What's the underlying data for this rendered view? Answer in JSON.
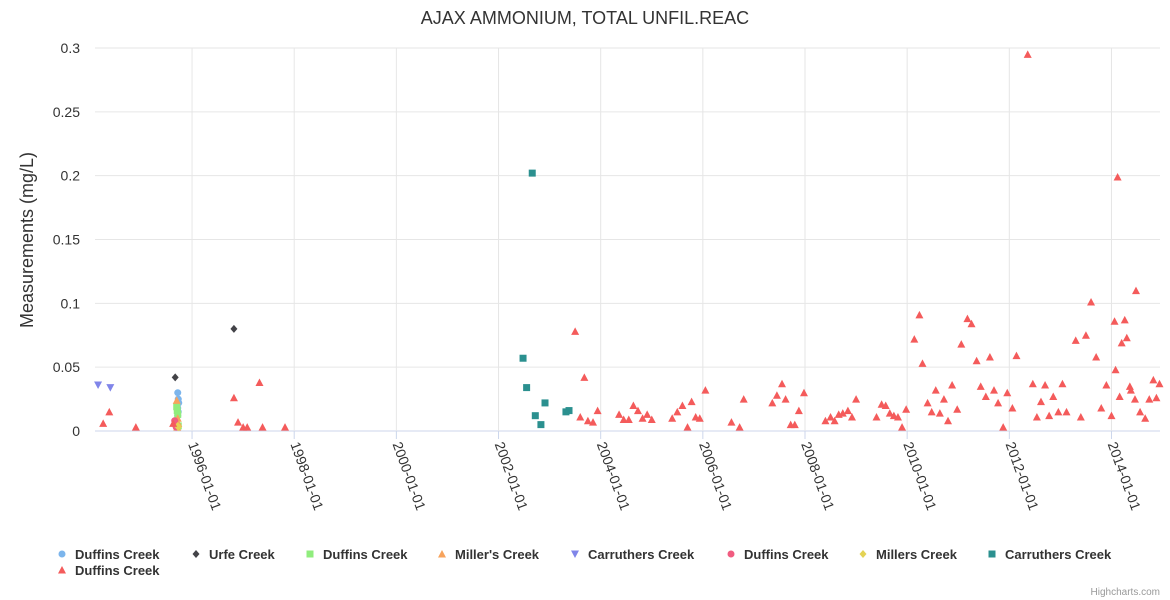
{
  "chart_data": {
    "type": "scatter",
    "title": "AJAX AMMONIUM, TOTAL UNFIL.REAC",
    "xlabel": "",
    "ylabel": "Measurements (mg/L)",
    "ylim": [
      0,
      0.3
    ],
    "yticks": [
      0,
      0.05,
      0.1,
      0.15,
      0.2,
      0.25,
      0.3
    ],
    "ytick_labels": [
      "0",
      "0.05",
      "0.1",
      "0.15",
      "0.2",
      "0.25",
      "0.3"
    ],
    "xlim": [
      1994.1,
      2014.95
    ],
    "xticks": [
      1996,
      1998,
      2000,
      2002,
      2004,
      2006,
      2008,
      2010,
      2012,
      2014
    ],
    "xtick_labels": [
      "1996-01-01",
      "1998-01-01",
      "2000-01-01",
      "2002-01-01",
      "2004-01-01",
      "2006-01-01",
      "2008-01-01",
      "2010-01-01",
      "2012-01-01",
      "2014-01-01"
    ],
    "grid": true,
    "legend_position": "bottom",
    "credits": "Highcharts.com",
    "series": [
      {
        "name": "Duffins Creek",
        "color": "#7cb5ec",
        "marker": "circle",
        "points": [
          [
            1995.72,
            0.03
          ],
          [
            1995.73,
            0.025
          ],
          [
            1995.74,
            0.022
          ],
          [
            1995.72,
            0.018
          ],
          [
            1995.73,
            0.015
          ],
          [
            1995.72,
            0.012
          ]
        ]
      },
      {
        "name": "Urfe Creek",
        "color": "#434348",
        "marker": "diamond",
        "points": [
          [
            1995.67,
            0.042
          ],
          [
            1996.82,
            0.08
          ]
        ]
      },
      {
        "name": "Duffins Creek",
        "color": "#90ed7d",
        "marker": "square",
        "points": [
          [
            1995.7,
            0.019
          ],
          [
            1995.71,
            0.016
          ],
          [
            1995.72,
            0.013
          ],
          [
            1995.73,
            0.004
          ]
        ]
      },
      {
        "name": "Miller's Creek",
        "color": "#f7a35c",
        "marker": "triangle",
        "points": [
          [
            1995.7,
            0.024
          ],
          [
            1995.72,
            0.01
          ],
          [
            1995.73,
            0.006
          ],
          [
            1995.71,
            0.003
          ]
        ]
      },
      {
        "name": "Carruthers Creek",
        "color": "#8085e9",
        "marker": "triangle-down",
        "points": [
          [
            1994.16,
            0.036
          ],
          [
            1994.4,
            0.034
          ]
        ]
      },
      {
        "name": "Duffins Creek",
        "color": "#f15c80",
        "marker": "circle",
        "points": [
          [
            1995.66,
            0.008
          ],
          [
            1995.67,
            0.005
          ],
          [
            1995.69,
            0.003
          ]
        ]
      },
      {
        "name": "Millers Creek",
        "color": "#e4d354",
        "marker": "diamond",
        "points": [
          [
            1995.72,
            0.004
          ],
          [
            1995.73,
            0.003
          ]
        ]
      },
      {
        "name": "Carruthers Creek",
        "color": "#2b908f",
        "marker": "square",
        "points": [
          [
            2002.48,
            0.057
          ],
          [
            2002.55,
            0.034
          ],
          [
            2002.66,
            0.202
          ],
          [
            2002.72,
            0.012
          ],
          [
            2002.83,
            0.005
          ],
          [
            2002.91,
            0.022
          ],
          [
            2003.32,
            0.015
          ],
          [
            2003.38,
            0.016
          ]
        ]
      },
      {
        "name": "Duffins Creek",
        "color": "#f45b5b",
        "marker": "triangle",
        "points": [
          [
            1994.26,
            0.006
          ],
          [
            1994.38,
            0.015
          ],
          [
            1994.9,
            0.003
          ],
          [
            1995.63,
            0.006
          ],
          [
            1996.82,
            0.026
          ],
          [
            1996.9,
            0.007
          ],
          [
            1997.0,
            0.003
          ],
          [
            1997.08,
            0.003
          ],
          [
            1997.32,
            0.038
          ],
          [
            1997.38,
            0.003
          ],
          [
            1997.82,
            0.003
          ],
          [
            2003.5,
            0.078
          ],
          [
            2003.6,
            0.011
          ],
          [
            2003.68,
            0.042
          ],
          [
            2003.75,
            0.008
          ],
          [
            2003.85,
            0.007
          ],
          [
            2003.94,
            0.016
          ],
          [
            2004.36,
            0.013
          ],
          [
            2004.45,
            0.009
          ],
          [
            2004.55,
            0.009
          ],
          [
            2004.64,
            0.02
          ],
          [
            2004.73,
            0.016
          ],
          [
            2004.82,
            0.01
          ],
          [
            2004.91,
            0.013
          ],
          [
            2005.0,
            0.009
          ],
          [
            2005.4,
            0.01
          ],
          [
            2005.5,
            0.015
          ],
          [
            2005.6,
            0.02
          ],
          [
            2005.7,
            0.003
          ],
          [
            2005.78,
            0.023
          ],
          [
            2005.86,
            0.011
          ],
          [
            2005.94,
            0.01
          ],
          [
            2006.05,
            0.032
          ],
          [
            2006.56,
            0.007
          ],
          [
            2006.72,
            0.003
          ],
          [
            2006.8,
            0.025
          ],
          [
            2007.36,
            0.022
          ],
          [
            2007.45,
            0.028
          ],
          [
            2007.55,
            0.037
          ],
          [
            2007.62,
            0.025
          ],
          [
            2007.72,
            0.005
          ],
          [
            2007.8,
            0.005
          ],
          [
            2007.88,
            0.016
          ],
          [
            2007.98,
            0.03
          ],
          [
            2008.4,
            0.008
          ],
          [
            2008.5,
            0.011
          ],
          [
            2008.58,
            0.008
          ],
          [
            2008.66,
            0.013
          ],
          [
            2008.74,
            0.014
          ],
          [
            2008.84,
            0.016
          ],
          [
            2008.92,
            0.011
          ],
          [
            2009.0,
            0.025
          ],
          [
            2009.4,
            0.011
          ],
          [
            2009.5,
            0.021
          ],
          [
            2009.58,
            0.02
          ],
          [
            2009.66,
            0.014
          ],
          [
            2009.74,
            0.012
          ],
          [
            2009.82,
            0.011
          ],
          [
            2009.9,
            0.003
          ],
          [
            2009.98,
            0.017
          ],
          [
            2010.14,
            0.072
          ],
          [
            2010.24,
            0.091
          ],
          [
            2010.3,
            0.053
          ],
          [
            2010.4,
            0.022
          ],
          [
            2010.48,
            0.015
          ],
          [
            2010.56,
            0.032
          ],
          [
            2010.64,
            0.014
          ],
          [
            2010.72,
            0.025
          ],
          [
            2010.8,
            0.008
          ],
          [
            2010.88,
            0.036
          ],
          [
            2010.98,
            0.017
          ],
          [
            2011.06,
            0.068
          ],
          [
            2011.18,
            0.088
          ],
          [
            2011.26,
            0.084
          ],
          [
            2011.36,
            0.055
          ],
          [
            2011.44,
            0.035
          ],
          [
            2011.54,
            0.027
          ],
          [
            2011.62,
            0.058
          ],
          [
            2011.7,
            0.032
          ],
          [
            2011.78,
            0.022
          ],
          [
            2011.88,
            0.003
          ],
          [
            2011.96,
            0.03
          ],
          [
            2012.06,
            0.018
          ],
          [
            2012.14,
            0.059
          ],
          [
            2012.36,
            0.295
          ],
          [
            2012.46,
            0.037
          ],
          [
            2012.54,
            0.011
          ],
          [
            2012.62,
            0.023
          ],
          [
            2012.7,
            0.036
          ],
          [
            2012.78,
            0.012
          ],
          [
            2012.86,
            0.027
          ],
          [
            2012.96,
            0.015
          ],
          [
            2013.04,
            0.037
          ],
          [
            2013.12,
            0.015
          ],
          [
            2013.3,
            0.071
          ],
          [
            2013.4,
            0.011
          ],
          [
            2013.5,
            0.075
          ],
          [
            2013.6,
            0.101
          ],
          [
            2013.7,
            0.058
          ],
          [
            2013.8,
            0.018
          ],
          [
            2013.9,
            0.036
          ],
          [
            2014.0,
            0.012
          ],
          [
            2014.08,
            0.048
          ],
          [
            2014.16,
            0.027
          ],
          [
            2014.26,
            0.087
          ],
          [
            2014.36,
            0.035
          ],
          [
            2014.46,
            0.025
          ],
          [
            2014.06,
            0.086
          ],
          [
            2014.12,
            0.199
          ],
          [
            2014.2,
            0.069
          ],
          [
            2014.3,
            0.073
          ],
          [
            2014.38,
            0.032
          ],
          [
            2014.48,
            0.11
          ],
          [
            2014.56,
            0.015
          ],
          [
            2014.66,
            0.01
          ],
          [
            2014.74,
            0.025
          ],
          [
            2014.82,
            0.04
          ],
          [
            2014.88,
            0.026
          ],
          [
            2014.94,
            0.037
          ]
        ]
      }
    ]
  }
}
